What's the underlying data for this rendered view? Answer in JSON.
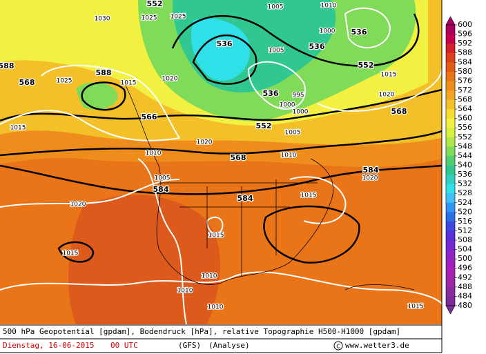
{
  "map": {
    "labels": [
      "1030",
      "1025",
      "1025",
      "552",
      "1005",
      "1010",
      "1000",
      "536",
      "536",
      "536",
      "1005",
      "588",
      "568",
      "588",
      "1025",
      "1015",
      "1020",
      "552",
      "1015",
      "536",
      "995",
      "1020",
      "1000",
      "1000",
      "568",
      "566",
      "552",
      "1015",
      "1005",
      "1020",
      "1010",
      "568",
      "1010",
      "584",
      "1020",
      "1005",
      "584",
      "584",
      "1015",
      "1020",
      "1015",
      "1015",
      "1010",
      "1010",
      "1010",
      "1015"
    ]
  },
  "colorbar": {
    "labels": [
      600,
      596,
      592,
      588,
      584,
      580,
      576,
      572,
      568,
      564,
      560,
      556,
      552,
      548,
      544,
      540,
      536,
      532,
      528,
      524,
      520,
      516,
      512,
      508,
      504,
      500,
      496,
      492,
      488,
      484,
      480
    ],
    "colors": [
      "#a8005c",
      "#c4004e",
      "#d2202c",
      "#dc4018",
      "#e45c14",
      "#ea7418",
      "#ee8c1c",
      "#f2a420",
      "#f4c02a",
      "#f6dc30",
      "#f2f040",
      "#d8f040",
      "#b0e848",
      "#80dc58",
      "#50d06c",
      "#30c890",
      "#30d0c0",
      "#30e0e8",
      "#40c0f4",
      "#3098f4",
      "#2c70e8",
      "#3c48e0",
      "#5830dc",
      "#7428d4",
      "#8c24c8",
      "#a020bc",
      "#a824b0",
      "#9c28a8",
      "#8c2ca0",
      "#7c2c98"
    ]
  },
  "footer": {
    "line1": "500 hPa Geopotential [gpdam], Bodendruck [hPa], relative Topographie H500-H1000 [gpdam]",
    "date": "Dienstag, 16-06-2015",
    "time": "00 UTC",
    "model": "(GFS)",
    "run": "(Analyse)",
    "credit": "www.wetter3.de"
  }
}
